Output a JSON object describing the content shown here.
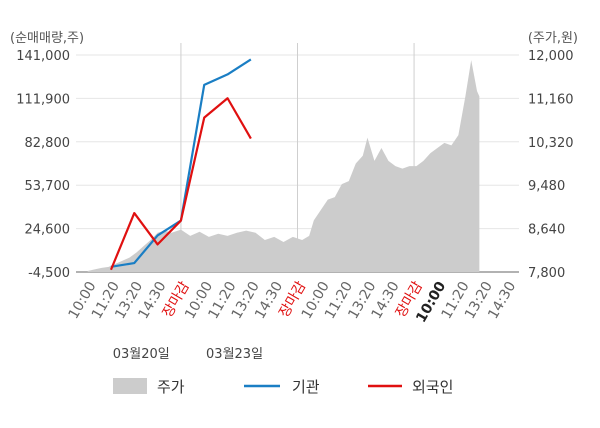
{
  "chart_data": {
    "type": "line",
    "left_axis_unit": "(순매매량,주)",
    "right_axis_unit": "(주가,원)",
    "left_ticks": [
      "141,000",
      "111,900",
      "82,800",
      "53,700",
      "24,600",
      "-4,500"
    ],
    "left_tick_values": [
      141000,
      111900,
      82800,
      53700,
      24600,
      -4500
    ],
    "right_ticks": [
      "12,000",
      "11,160",
      "10,320",
      "9,480",
      "8,640",
      "7,800"
    ],
    "right_tick_values": [
      12000,
      11160,
      10320,
      9480,
      8640,
      7800
    ],
    "left_range": [
      -4500,
      141000
    ],
    "right_range": [
      7800,
      12000
    ],
    "x_ticks": [
      {
        "label": "10:00",
        "slot": 0
      },
      {
        "label": "11:20",
        "slot": 1
      },
      {
        "label": "13:20",
        "slot": 2
      },
      {
        "label": "14:30",
        "slot": 3
      },
      {
        "label": "장마감",
        "slot": 4,
        "close": true
      },
      {
        "label": "10:00",
        "slot": 5
      },
      {
        "label": "11:20",
        "slot": 6
      },
      {
        "label": "13:20",
        "slot": 7
      },
      {
        "label": "14:30",
        "slot": 8
      },
      {
        "label": "장마감",
        "slot": 9,
        "close": true
      },
      {
        "label": "10:00",
        "slot": 10
      },
      {
        "label": "11:20",
        "slot": 11
      },
      {
        "label": "13:20",
        "slot": 12
      },
      {
        "label": "14:30",
        "slot": 13
      },
      {
        "label": "장마감",
        "slot": 14,
        "close": true
      },
      {
        "label": "10:00",
        "slot": 15,
        "bold": true
      },
      {
        "label": "11:20",
        "slot": 16
      },
      {
        "label": "13:20",
        "slot": 17
      },
      {
        "label": "14:30",
        "slot": 18
      }
    ],
    "dates": [
      {
        "label": "03월20일",
        "slot": 2.3
      },
      {
        "label": "03월23일",
        "slot": 6.3
      }
    ],
    "legend": {
      "price": "주가",
      "institution": "기관",
      "foreign": "외국인"
    },
    "colors": {
      "price_area": "#cccccc",
      "institution": "#1a7ec4",
      "foreign": "#e01010",
      "close_label": "#e01010"
    },
    "series": [
      {
        "name": "기관",
        "axis": "left",
        "points": [
          [
            1,
            -1000
          ],
          [
            2,
            1500
          ],
          [
            3,
            20000
          ],
          [
            4,
            30000
          ],
          [
            5,
            121000
          ],
          [
            6,
            128000
          ],
          [
            7,
            138000
          ]
        ]
      },
      {
        "name": "외국인",
        "axis": "left",
        "points": [
          [
            1,
            -3000
          ],
          [
            2,
            35000
          ],
          [
            3,
            14000
          ],
          [
            4,
            30000
          ],
          [
            5,
            99000
          ],
          [
            6,
            112000
          ],
          [
            7,
            85000
          ]
        ]
      }
    ],
    "price_series": {
      "name": "주가",
      "axis": "right",
      "points": [
        [
          0,
          7820
        ],
        [
          0.3,
          7850
        ],
        [
          0.6,
          7880
        ],
        [
          0.9,
          7900
        ],
        [
          1.2,
          7960
        ],
        [
          1.5,
          8020
        ],
        [
          1.8,
          8080
        ],
        [
          2.1,
          8180
        ],
        [
          2.4,
          8300
        ],
        [
          2.7,
          8420
        ],
        [
          3.0,
          8560
        ],
        [
          3.3,
          8600
        ],
        [
          3.6,
          8560
        ],
        [
          4.0,
          8620
        ],
        [
          4.4,
          8500
        ],
        [
          4.8,
          8580
        ],
        [
          5.2,
          8480
        ],
        [
          5.6,
          8540
        ],
        [
          6.0,
          8500
        ],
        [
          6.4,
          8560
        ],
        [
          6.8,
          8600
        ],
        [
          7.2,
          8560
        ],
        [
          7.6,
          8420
        ],
        [
          8.0,
          8480
        ],
        [
          8.4,
          8380
        ],
        [
          8.8,
          8480
        ],
        [
          9.2,
          8420
        ],
        [
          9.5,
          8500
        ],
        [
          9.7,
          8800
        ],
        [
          10.0,
          9000
        ],
        [
          10.3,
          9200
        ],
        [
          10.6,
          9250
        ],
        [
          10.9,
          9500
        ],
        [
          11.2,
          9560
        ],
        [
          11.5,
          9900
        ],
        [
          11.8,
          10050
        ],
        [
          12.0,
          10400
        ],
        [
          12.3,
          9950
        ],
        [
          12.6,
          10200
        ],
        [
          12.9,
          9950
        ],
        [
          13.2,
          9850
        ],
        [
          13.5,
          9800
        ],
        [
          13.8,
          9850
        ],
        [
          14.1,
          9850
        ],
        [
          14.4,
          9950
        ],
        [
          14.7,
          10100
        ],
        [
          15.0,
          10200
        ],
        [
          15.3,
          10300
        ],
        [
          15.6,
          10250
        ],
        [
          15.9,
          10450
        ],
        [
          16.2,
          11200
        ],
        [
          16.45,
          11900
        ],
        [
          16.7,
          11300
        ],
        [
          16.8,
          11200
        ]
      ]
    }
  }
}
